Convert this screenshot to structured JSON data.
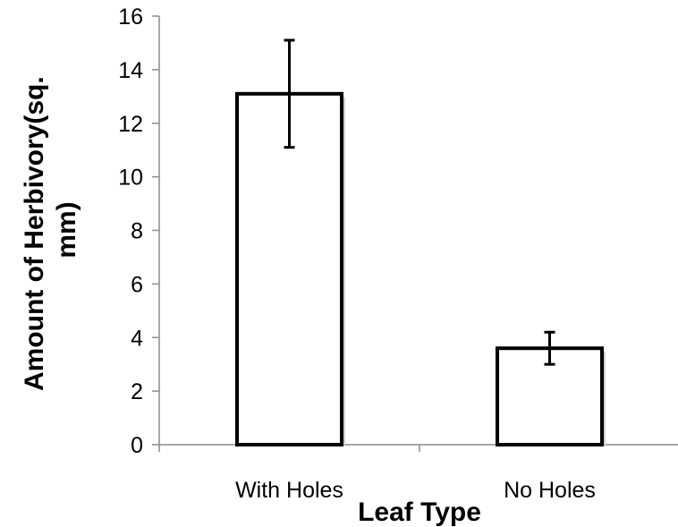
{
  "chart_data": {
    "type": "bar",
    "categories": [
      "With Holes",
      "No Holes"
    ],
    "series": [
      {
        "values": [
          13.1,
          3.6
        ],
        "error": [
          2.0,
          0.6
        ]
      }
    ],
    "xlabel": "Leaf Type",
    "ylabel_lines": [
      "Amount of Herbivory(sq.",
      "mm)"
    ],
    "ylim": [
      0,
      16
    ],
    "yticks": [
      0,
      2,
      4,
      6,
      8,
      10,
      12,
      14,
      16
    ],
    "grid": false,
    "legend": "none",
    "colors": {
      "bar_fill": "#ffffff",
      "bar_stroke": "#000000",
      "axis": "#8c8c8c"
    }
  }
}
